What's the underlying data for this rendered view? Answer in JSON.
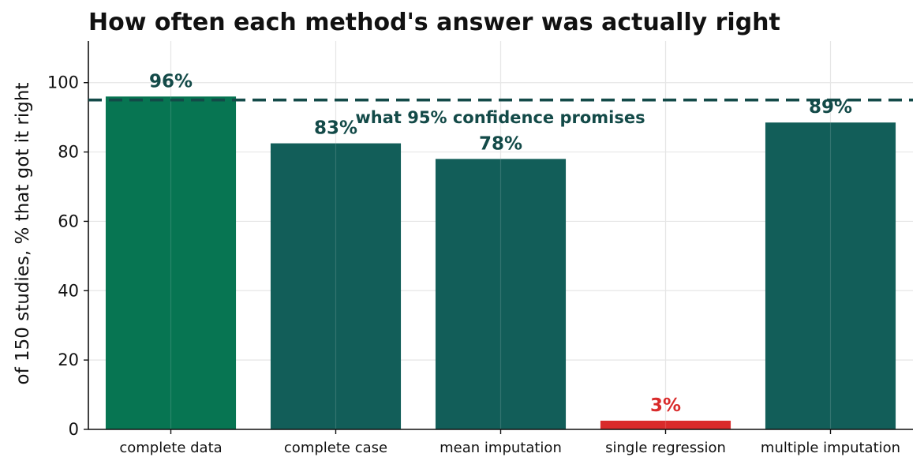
{
  "chart_data": {
    "type": "bar",
    "title": "How often each method's answer was actually right",
    "xlabel": "",
    "ylabel": "of 150 studies, % that got it right",
    "ylim": [
      0,
      112
    ],
    "yticks": [
      0,
      20,
      40,
      60,
      80,
      100
    ],
    "grid": true,
    "categories": [
      "complete data",
      "complete case",
      "mean imputation",
      "single regression",
      "multiple imputation"
    ],
    "values": [
      96,
      82.5,
      78,
      2.5,
      88.5
    ],
    "data_labels": [
      "96%",
      "83%",
      "78%",
      "3%",
      "89%"
    ],
    "bar_colors": [
      "#077552",
      "#125e59",
      "#125e59",
      "#d92b2b",
      "#125e59"
    ],
    "label_colors": [
      "#134a48",
      "#134a48",
      "#134a48",
      "#d92b2b",
      "#134a48"
    ],
    "reference_line": {
      "value": 95,
      "label": "what 95% confidence promises",
      "color": "#134a48",
      "style": "dashed"
    }
  }
}
